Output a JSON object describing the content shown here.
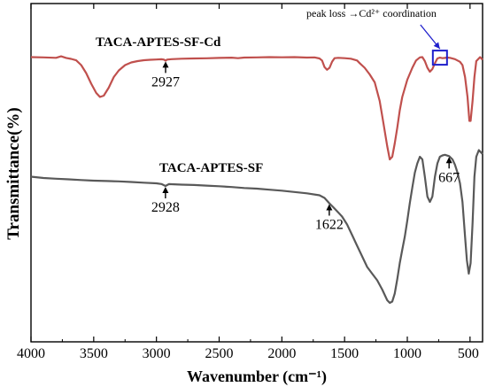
{
  "chart_data": {
    "type": "line",
    "title": "",
    "xlabel": "Wavenumber (cm⁻¹)",
    "ylabel": "Transmittance(%)",
    "xlim": [
      4000,
      400
    ],
    "x_reversed": true,
    "xticks": [
      4000,
      3500,
      3000,
      2500,
      2000,
      1500,
      1000,
      500
    ],
    "grid": false,
    "legend": "none",
    "series": [
      {
        "name": "TACA-APTES-SF-Cd",
        "color": "#c0504d",
        "points": [
          [
            4000,
            5.0
          ],
          [
            3900,
            5.2
          ],
          [
            3800,
            5.5
          ],
          [
            3760,
            4.4
          ],
          [
            3720,
            5.6
          ],
          [
            3680,
            6.3
          ],
          [
            3640,
            7.4
          ],
          [
            3600,
            11
          ],
          [
            3560,
            17
          ],
          [
            3520,
            25
          ],
          [
            3480,
            32
          ],
          [
            3450,
            35
          ],
          [
            3420,
            34
          ],
          [
            3380,
            28
          ],
          [
            3340,
            20
          ],
          [
            3300,
            15
          ],
          [
            3250,
            11
          ],
          [
            3200,
            9
          ],
          [
            3150,
            8
          ],
          [
            3100,
            7.3
          ],
          [
            3050,
            7.0
          ],
          [
            3000,
            6.8
          ],
          [
            2960,
            6.6
          ],
          [
            2940,
            6.9
          ],
          [
            2927,
            7.6
          ],
          [
            2915,
            6.9
          ],
          [
            2880,
            6.5
          ],
          [
            2800,
            6.2
          ],
          [
            2700,
            6.0
          ],
          [
            2600,
            5.9
          ],
          [
            2500,
            5.6
          ],
          [
            2400,
            5.4
          ],
          [
            2350,
            5.8
          ],
          [
            2300,
            5.3
          ],
          [
            2200,
            5.2
          ],
          [
            2100,
            5.0
          ],
          [
            2000,
            5.1
          ],
          [
            1900,
            5.0
          ],
          [
            1800,
            5.3
          ],
          [
            1740,
            5.2
          ],
          [
            1700,
            6.0
          ],
          [
            1680,
            7.5
          ],
          [
            1660,
            12.5
          ],
          [
            1640,
            14.5
          ],
          [
            1620,
            13
          ],
          [
            1600,
            8.5
          ],
          [
            1580,
            5.8
          ],
          [
            1550,
            5.5
          ],
          [
            1500,
            5.8
          ],
          [
            1450,
            6.2
          ],
          [
            1400,
            7.5
          ],
          [
            1380,
            9.5
          ],
          [
            1340,
            13
          ],
          [
            1300,
            18
          ],
          [
            1260,
            24
          ],
          [
            1220,
            38
          ],
          [
            1190,
            55
          ],
          [
            1160,
            72
          ],
          [
            1140,
            82
          ],
          [
            1120,
            80
          ],
          [
            1100,
            70
          ],
          [
            1080,
            58
          ],
          [
            1060,
            45
          ],
          [
            1040,
            35
          ],
          [
            1000,
            22
          ],
          [
            960,
            13
          ],
          [
            930,
            7.5
          ],
          [
            900,
            5.2
          ],
          [
            880,
            5.0
          ],
          [
            860,
            8
          ],
          [
            840,
            13
          ],
          [
            820,
            16
          ],
          [
            800,
            14
          ],
          [
            780,
            9.5
          ],
          [
            760,
            6
          ],
          [
            740,
            5.4
          ],
          [
            720,
            5.8
          ],
          [
            700,
            5.6
          ],
          [
            680,
            5.3
          ],
          [
            660,
            5.5
          ],
          [
            620,
            6.5
          ],
          [
            600,
            7.5
          ],
          [
            580,
            8.5
          ],
          [
            560,
            11
          ],
          [
            540,
            20
          ],
          [
            520,
            35
          ],
          [
            505,
            53
          ],
          [
            495,
            53
          ],
          [
            480,
            38
          ],
          [
            465,
            20
          ],
          [
            450,
            8
          ],
          [
            420,
            5
          ],
          [
            400,
            7
          ]
        ]
      },
      {
        "name": "TACA-APTES-SF",
        "color": "#595959",
        "points": [
          [
            4000,
            95
          ],
          [
            3900,
            96
          ],
          [
            3800,
            96.5
          ],
          [
            3700,
            97
          ],
          [
            3600,
            97.5
          ],
          [
            3500,
            98
          ],
          [
            3400,
            98.3
          ],
          [
            3300,
            98.5
          ],
          [
            3200,
            99
          ],
          [
            3100,
            99.5
          ],
          [
            3000,
            100
          ],
          [
            2960,
            100.5
          ],
          [
            2928,
            102
          ],
          [
            2900,
            100.6
          ],
          [
            2800,
            101
          ],
          [
            2700,
            101.3
          ],
          [
            2600,
            101.7
          ],
          [
            2500,
            102.2
          ],
          [
            2400,
            102.8
          ],
          [
            2300,
            103.5
          ],
          [
            2200,
            104
          ],
          [
            2100,
            104.8
          ],
          [
            2000,
            105.5
          ],
          [
            1900,
            106.5
          ],
          [
            1800,
            107.5
          ],
          [
            1700,
            109
          ],
          [
            1660,
            111
          ],
          [
            1622,
            115
          ],
          [
            1590,
            118
          ],
          [
            1560,
            121
          ],
          [
            1520,
            125
          ],
          [
            1480,
            131
          ],
          [
            1440,
            139
          ],
          [
            1400,
            147
          ],
          [
            1360,
            155
          ],
          [
            1320,
            163
          ],
          [
            1280,
            168
          ],
          [
            1240,
            173
          ],
          [
            1200,
            180
          ],
          [
            1160,
            188
          ],
          [
            1140,
            190
          ],
          [
            1120,
            189
          ],
          [
            1100,
            183
          ],
          [
            1080,
            172
          ],
          [
            1060,
            160
          ],
          [
            1040,
            150
          ],
          [
            1020,
            140
          ],
          [
            1000,
            128
          ],
          [
            980,
            115
          ],
          [
            960,
            103
          ],
          [
            940,
            92
          ],
          [
            920,
            85
          ],
          [
            900,
            80
          ],
          [
            880,
            82
          ],
          [
            860,
            95
          ],
          [
            840,
            110
          ],
          [
            820,
            114
          ],
          [
            800,
            110
          ],
          [
            780,
            95
          ],
          [
            760,
            85
          ],
          [
            740,
            80
          ],
          [
            720,
            79
          ],
          [
            700,
            78.5
          ],
          [
            667,
            79.5
          ],
          [
            640,
            82
          ],
          [
            620,
            86
          ],
          [
            600,
            92
          ],
          [
            580,
            100
          ],
          [
            560,
            114
          ],
          [
            540,
            140
          ],
          [
            525,
            158
          ],
          [
            510,
            168
          ],
          [
            495,
            160
          ],
          [
            480,
            130
          ],
          [
            465,
            95
          ],
          [
            450,
            80
          ],
          [
            430,
            75
          ],
          [
            400,
            78
          ]
        ]
      }
    ],
    "series_labels": [
      "TACA-APTES-SF-Cd",
      "TACA-APTES-SF"
    ],
    "annotations": [
      {
        "label": "2927",
        "x": 2927,
        "series": 0
      },
      {
        "label": "2928",
        "x": 2928,
        "series": 1
      },
      {
        "label": "1622",
        "x": 1622,
        "series": 1
      },
      {
        "label": "667",
        "x": 667,
        "series": 1
      }
    ],
    "peak_note": {
      "text": "peak loss →Cd²⁺ coordination",
      "x": 740,
      "series": 0
    }
  }
}
